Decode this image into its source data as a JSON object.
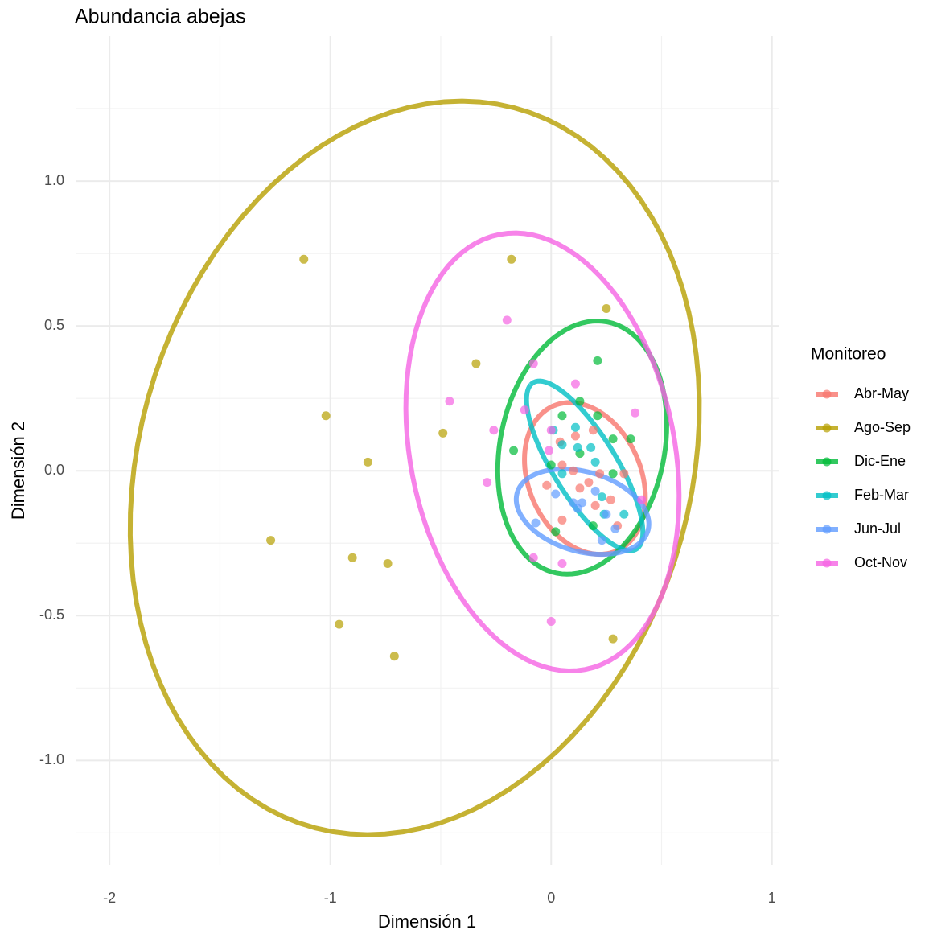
{
  "chart_data": {
    "type": "scatter",
    "title": "Abundancia abejas",
    "x_label": "Dimensión 1",
    "y_label": "Dimensión 2",
    "legend_title": "Monitoreo",
    "xlim": [
      -2.15,
      1.03
    ],
    "ylim": [
      -1.36,
      1.5
    ],
    "xticks": [
      -2,
      -1,
      0,
      1
    ],
    "yticks": [
      {
        "value": -1,
        "label": "-1.0"
      },
      -0.5,
      {
        "value": 0,
        "label": "0.0"
      },
      0.5,
      {
        "value": 1,
        "label": "1.0"
      }
    ],
    "grid": true,
    "ellipse": true,
    "legend": "right",
    "series": [
      {
        "name": "Abr-May",
        "color": "#F8766D",
        "x": [
          0.04,
          0.11,
          0.05,
          0.1,
          0.17,
          0.13,
          0.22,
          0.33,
          -0.02,
          0.05,
          0.2,
          0.3,
          0.27,
          0.19
        ],
        "values": [
          0.1,
          0.12,
          0.02,
          0.0,
          -0.04,
          -0.06,
          -0.01,
          -0.01,
          -0.05,
          -0.17,
          -0.12,
          -0.19,
          -0.1,
          0.14
        ]
      },
      {
        "name": "Ago-Sep",
        "color": "#B79F00",
        "x": [
          -1.12,
          -0.18,
          0.25,
          -0.34,
          -1.02,
          -0.49,
          -0.83,
          -1.27,
          -0.9,
          -0.74,
          -0.96,
          -0.71,
          0.28
        ],
        "values": [
          0.73,
          0.73,
          0.56,
          0.37,
          0.19,
          0.13,
          0.03,
          -0.24,
          -0.3,
          -0.32,
          -0.53,
          -0.64,
          -0.58
        ]
      },
      {
        "name": "Dic-Ene",
        "color": "#00BA38",
        "x": [
          0.21,
          -0.17,
          0.13,
          0.21,
          0.28,
          0.36,
          0.13,
          0.0,
          0.19,
          0.02,
          0.28,
          0.05
        ],
        "values": [
          0.38,
          0.07,
          0.24,
          0.19,
          0.11,
          0.11,
          0.06,
          0.02,
          -0.19,
          -0.21,
          -0.01,
          0.19
        ]
      },
      {
        "name": "Feb-Mar",
        "color": "#00BFC4",
        "x": [
          0.05,
          0.11,
          0.2,
          0.18,
          0.01,
          0.23,
          0.33,
          0.24,
          0.12,
          0.05
        ],
        "values": [
          0.09,
          0.15,
          0.03,
          0.08,
          0.14,
          -0.09,
          -0.15,
          -0.15,
          0.08,
          -0.01
        ]
      },
      {
        "name": "Jun-Jul",
        "color": "#619CFF",
        "x": [
          0.02,
          0.14,
          0.1,
          0.12,
          0.25,
          -0.07,
          0.23,
          0.2,
          0.29
        ],
        "values": [
          -0.08,
          -0.11,
          -0.11,
          -0.13,
          -0.15,
          -0.18,
          -0.24,
          -0.07,
          -0.2
        ]
      },
      {
        "name": "Oct-Nov",
        "color": "#F564E3",
        "x": [
          -0.2,
          -0.46,
          -0.26,
          -0.29,
          -0.12,
          -0.08,
          0.0,
          -0.01,
          0.38,
          0.41,
          -0.08,
          0.05,
          0.0,
          0.11
        ],
        "values": [
          0.52,
          0.24,
          0.14,
          -0.04,
          0.21,
          0.37,
          0.14,
          0.07,
          0.2,
          -0.1,
          -0.3,
          -0.32,
          -0.52,
          0.3
        ]
      }
    ]
  }
}
